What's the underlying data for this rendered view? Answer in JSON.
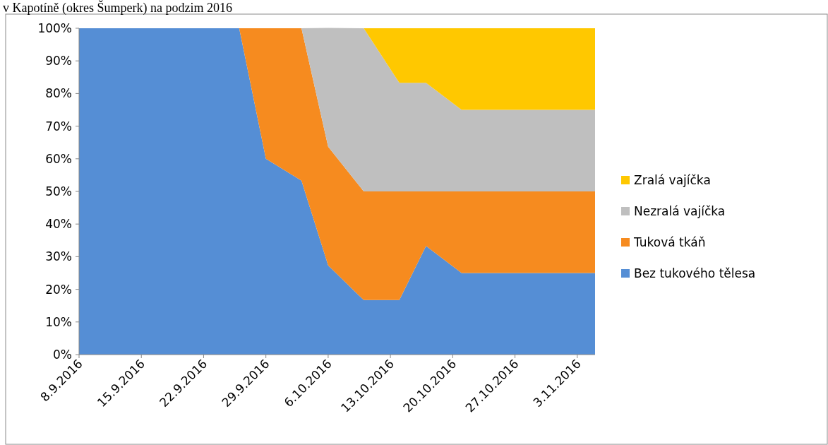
{
  "chart_data": {
    "type": "area",
    "stacked": true,
    "title": "v Kapotíně (okres Šumperk) na podzim 2016",
    "x": [
      "2016-09-08",
      "2016-09-26",
      "2016-09-29",
      "2016-10-03",
      "2016-10-06",
      "2016-10-10",
      "2016-10-14",
      "2016-10-17",
      "2016-10-21",
      "2016-11-05"
    ],
    "series": [
      {
        "name": "Bez tukového  tělesa",
        "color": "#558ed5",
        "values": [
          100,
          100,
          60,
          53.3,
          27.3,
          16.7,
          16.7,
          33.3,
          25,
          25
        ]
      },
      {
        "name": "Tuková tkáň",
        "color": "#f68b1f",
        "values": [
          0,
          0,
          40,
          46.7,
          36.4,
          33.3,
          33.3,
          16.7,
          25,
          25
        ]
      },
      {
        "name": "Nezralá vajíčka",
        "color": "#bfbfbf",
        "values": [
          0,
          0,
          0,
          0,
          36.4,
          50,
          33.3,
          33.3,
          25,
          25
        ]
      },
      {
        "name": "Zralá vajíčka",
        "color": "#ffc800",
        "values": [
          0,
          0,
          0,
          0,
          0,
          0,
          16.7,
          16.7,
          25,
          25
        ]
      }
    ],
    "xlim": [
      "2016-09-08",
      "2016-11-05"
    ],
    "xticks": [
      {
        "value": "2016-09-08",
        "label": "8.9.2016"
      },
      {
        "value": "2016-09-15",
        "label": "15.9.2016"
      },
      {
        "value": "2016-09-22",
        "label": "22.9.2016"
      },
      {
        "value": "2016-09-29",
        "label": "29.9.2016"
      },
      {
        "value": "2016-10-06",
        "label": "6.10.2016"
      },
      {
        "value": "2016-10-13",
        "label": "13.10.2016"
      },
      {
        "value": "2016-10-20",
        "label": "20.10.2016"
      },
      {
        "value": "2016-10-27",
        "label": "27.10.2016"
      },
      {
        "value": "2016-11-03",
        "label": "3.11.2016"
      }
    ],
    "ylim": [
      0,
      100
    ],
    "yticks": [
      {
        "value": 0,
        "label": "0%"
      },
      {
        "value": 10,
        "label": "10%"
      },
      {
        "value": 20,
        "label": "20%"
      },
      {
        "value": 30,
        "label": "30%"
      },
      {
        "value": 40,
        "label": "40%"
      },
      {
        "value": 50,
        "label": "50%"
      },
      {
        "value": 60,
        "label": "60%"
      },
      {
        "value": 70,
        "label": "70%"
      },
      {
        "value": 80,
        "label": "80%"
      },
      {
        "value": 90,
        "label": "90%"
      },
      {
        "value": 100,
        "label": "100%"
      }
    ],
    "grid": false,
    "legend": "right"
  }
}
